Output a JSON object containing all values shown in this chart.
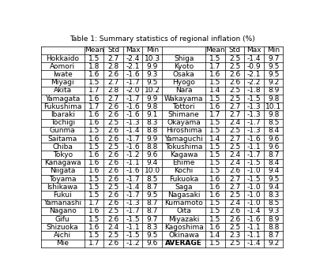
{
  "title": "Table 1: Summary statistics of regional inflation (%)",
  "left_rows": [
    [
      "Hokkaido",
      "1.5",
      "2.7",
      "-2.4",
      "10.3"
    ],
    [
      "Aomori",
      "1.8",
      "2.8",
      "-2.1",
      "9.9"
    ],
    [
      "Iwate",
      "1.6",
      "2.6",
      "-1.6",
      "9.3"
    ],
    [
      "Miyagi",
      "1.5",
      "2.7",
      "-1.7",
      "9.5"
    ],
    [
      "Akita",
      "1.7",
      "2.8",
      "-2.0",
      "10.2"
    ],
    [
      "Yamagata",
      "1.6",
      "2.7",
      "-1.7",
      "9.9"
    ],
    [
      "Fukushima",
      "1.7",
      "2.6",
      "-1.6",
      "9.8"
    ],
    [
      "Ibaraki",
      "1.6",
      "2.6",
      "-1.6",
      "9.1"
    ],
    [
      "Tochigi",
      "1.6",
      "2.5",
      "-1.3",
      "8.3"
    ],
    [
      "Gunma",
      "1.5",
      "2.6",
      "-1.4",
      "8.8"
    ],
    [
      "Saitama",
      "1.6",
      "2.6",
      "-1.7",
      "9.9"
    ],
    [
      "Chiba",
      "1.5",
      "2.5",
      "-1.6",
      "8.8"
    ],
    [
      "Tokyo",
      "1.6",
      "2.6",
      "-1.2",
      "9.6"
    ],
    [
      "Kanagawa",
      "1.6",
      "2.6",
      "-1.1",
      "9.4"
    ],
    [
      "Niigata",
      "1.6",
      "2.6",
      "-1.6",
      "10.0"
    ],
    [
      "Toyama",
      "1.5",
      "2.6",
      "-1.7",
      "8.5"
    ],
    [
      "Ishikawa",
      "1.5",
      "2.5",
      "-1.4",
      "8.7"
    ],
    [
      "Fukui",
      "1.5",
      "2.6",
      "-1.7",
      "9.5"
    ],
    [
      "Yamanashi",
      "1.7",
      "2.6",
      "-1.3",
      "8.7"
    ],
    [
      "Nagano",
      "1.6",
      "2.5",
      "-1.7",
      "8.7"
    ],
    [
      "Gifu",
      "1.5",
      "2.6",
      "-1.5",
      "9.7"
    ],
    [
      "Shizuoka",
      "1.6",
      "2.4",
      "-1.1",
      "8.3"
    ],
    [
      "Aichi",
      "1.5",
      "2.5",
      "-1.5",
      "9.5"
    ],
    [
      "Mie",
      "1.7",
      "2.6",
      "-1.2",
      "9.6"
    ]
  ],
  "right_rows": [
    [
      "Shiga",
      "1.5",
      "2.5",
      "-1.4",
      "9.7"
    ],
    [
      "Kyoto",
      "1.7",
      "2.5",
      "-0.9",
      "9.5"
    ],
    [
      "Osaka",
      "1.6",
      "2.6",
      "-2.1",
      "9.5"
    ],
    [
      "Hyogo",
      "1.5",
      "2.6",
      "-2.2",
      "9.2"
    ],
    [
      "Nara",
      "1.4",
      "2.5",
      "-1.8",
      "8.9"
    ],
    [
      "Wakayama",
      "1.5",
      "2.5",
      "-1.5",
      "9.8"
    ],
    [
      "Tottori",
      "1.6",
      "2.7",
      "-1.3",
      "10.1"
    ],
    [
      "Shimane",
      "1.7",
      "2.7",
      "-1.3",
      "9.8"
    ],
    [
      "Okayama",
      "1.5",
      "2.4",
      "-1.7",
      "8.5"
    ],
    [
      "Hiroshima",
      "1.5",
      "2.5",
      "-1.3",
      "8.4"
    ],
    [
      "Yamaguchi",
      "1.4",
      "2.7",
      "-1.6",
      "9.6"
    ],
    [
      "Tokushima",
      "1.5",
      "2.5",
      "-1.1",
      "9.6"
    ],
    [
      "Kagawa",
      "1.5",
      "2.4",
      "-1.7",
      "8.7"
    ],
    [
      "Ehime",
      "1.5",
      "2.4",
      "-1.5",
      "8.4"
    ],
    [
      "Kochi",
      "1.5",
      "2.6",
      "-1.0",
      "9.4"
    ],
    [
      "Fukuoka",
      "1.6",
      "2.7",
      "-1.5",
      "9.5"
    ],
    [
      "Saga",
      "1.6",
      "2.7",
      "-1.0",
      "9.4"
    ],
    [
      "Nagasaki",
      "1.6",
      "2.5",
      "-1.0",
      "8.3"
    ],
    [
      "Kumamoto",
      "1.5",
      "2.4",
      "-1.0",
      "8.5"
    ],
    [
      "Oita",
      "1.5",
      "2.6",
      "-1.4",
      "9.3"
    ],
    [
      "Miyazaki",
      "1.5",
      "2.6",
      "-1.6",
      "8.9"
    ],
    [
      "Kagoshima",
      "1.6",
      "2.5",
      "-1.1",
      "8.8"
    ],
    [
      "Okinawa",
      "1.4",
      "2.3",
      "-1.1",
      "8.7"
    ],
    [
      "AVERAGE",
      "1.5",
      "2.5",
      "-1.4",
      "9.2"
    ]
  ],
  "bg_color": "#ffffff",
  "text_color": "#000000",
  "line_color": "#000000",
  "cell_fontsize": 6.5,
  "header_fontsize": 6.5,
  "figsize": [
    4.0,
    3.54
  ],
  "dpi": 100
}
